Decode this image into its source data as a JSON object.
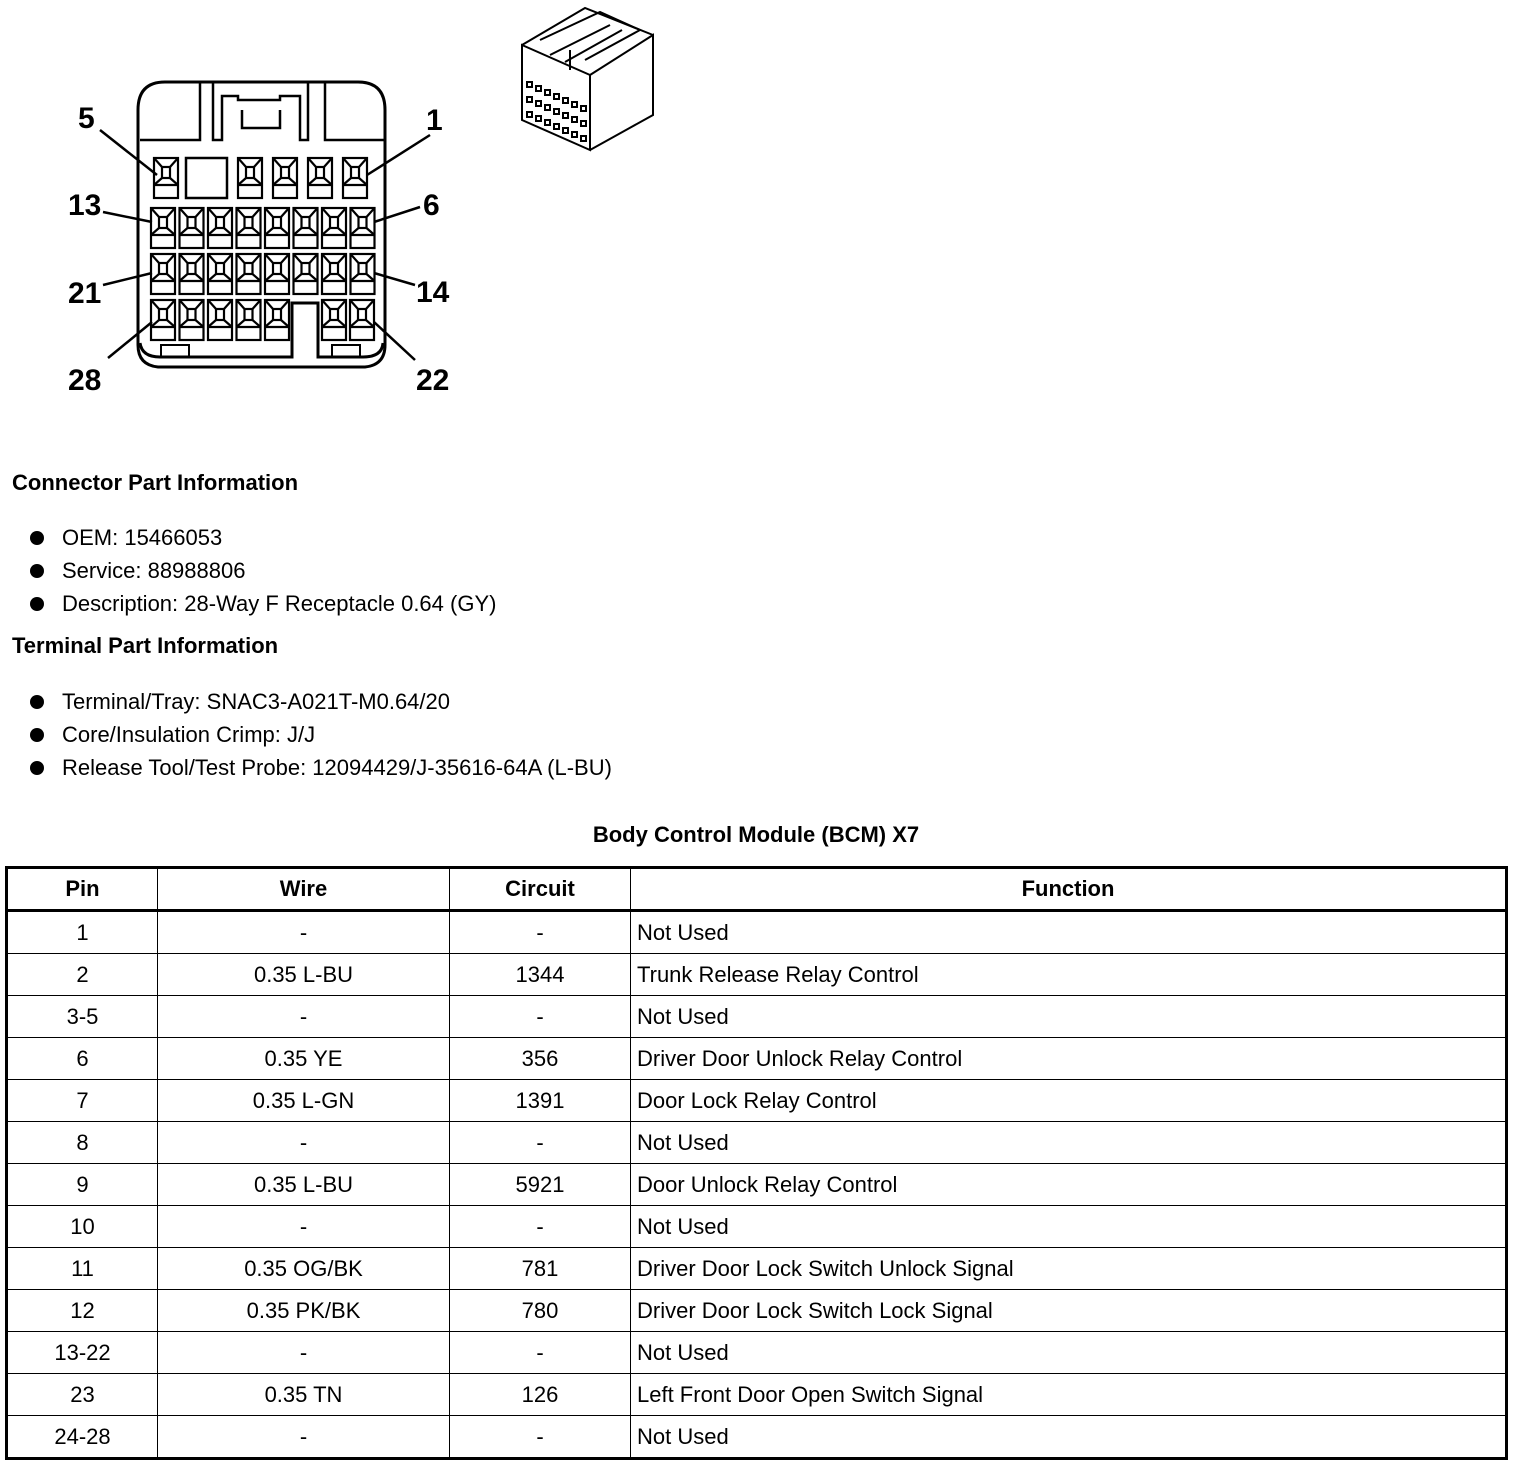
{
  "connector_view": {
    "pin_labels": {
      "top_left": "5",
      "top_right": "1",
      "row2_left": "13",
      "row2_right": "6",
      "row3_left": "21",
      "row3_right": "14",
      "row4_left": "28",
      "row4_right": "22"
    }
  },
  "connector_info": {
    "heading": "Connector Part Information",
    "items": [
      "OEM: 15466053",
      "Service: 88988806",
      "Description: 28-Way F Receptacle 0.64 (GY)"
    ]
  },
  "terminal_info": {
    "heading": "Terminal Part Information",
    "items": [
      "Terminal/Tray: SNAC3-A021T-M0.64/20",
      "Core/Insulation Crimp: J/J",
      "Release Tool/Test Probe: 12094429/J-35616-64A (L-BU)"
    ]
  },
  "table": {
    "title": "Body Control Module (BCM) X7",
    "headers": [
      "Pin",
      "Wire",
      "Circuit",
      "Function"
    ],
    "rows": [
      [
        "1",
        "-",
        "-",
        "Not Used"
      ],
      [
        "2",
        "0.35 L-BU",
        "1344",
        "Trunk Release Relay Control"
      ],
      [
        "3-5",
        "-",
        "-",
        "Not Used"
      ],
      [
        "6",
        "0.35 YE",
        "356",
        "Driver Door Unlock Relay Control"
      ],
      [
        "7",
        "0.35 L-GN",
        "1391",
        "Door Lock Relay Control"
      ],
      [
        "8",
        "-",
        "-",
        "Not Used"
      ],
      [
        "9",
        "0.35 L-BU",
        "5921",
        "Door Unlock Relay Control"
      ],
      [
        "10",
        "-",
        "-",
        "Not Used"
      ],
      [
        "11",
        "0.35 OG/BK",
        "781",
        "Driver Door Lock Switch Unlock Signal"
      ],
      [
        "12",
        "0.35 PK/BK",
        "780",
        "Driver Door Lock Switch Lock Signal"
      ],
      [
        "13-22",
        "-",
        "-",
        "Not Used"
      ],
      [
        "23",
        "0.35 TN",
        "126",
        "Left Front Door Open Switch Signal"
      ],
      [
        "24-28",
        "-",
        "-",
        "Not Used"
      ]
    ]
  }
}
